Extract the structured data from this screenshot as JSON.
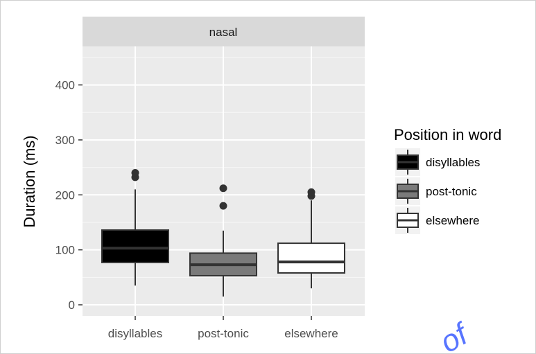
{
  "chart_data": {
    "type": "boxplot",
    "facet_label": "nasal",
    "xlabel": "",
    "ylabel": "Duration (ms)",
    "ylim": [
      -20,
      500
    ],
    "y_ticks": [
      0,
      100,
      200,
      300,
      400
    ],
    "categories": [
      "disyllables",
      "post-tonic",
      "elsewhere"
    ],
    "boxes": [
      {
        "category": "disyllables",
        "fill": "#000000",
        "min": 35,
        "q1": 77,
        "median": 103,
        "q3": 136,
        "max": 210,
        "outliers": [
          232,
          240
        ]
      },
      {
        "category": "post-tonic",
        "fill": "#7a7a7a",
        "min": 15,
        "q1": 53,
        "median": 73,
        "q3": 94,
        "max": 135,
        "outliers": [
          180,
          212
        ]
      },
      {
        "category": "elsewhere",
        "fill": "#ffffff",
        "min": 30,
        "q1": 58,
        "median": 78,
        "q3": 112,
        "max": 190,
        "outliers": [
          198,
          205
        ]
      }
    ],
    "legend": {
      "title": "Position in word",
      "items": [
        "disyllables",
        "post-tonic",
        "elsewhere"
      ]
    },
    "grid": true,
    "colors": {
      "panel_bg": "#ebebeb",
      "strip_bg": "#d9d9d9",
      "grid_major": "#ffffff",
      "box_outline": "#333333",
      "median_line": "#333333"
    }
  },
  "watermark": "of"
}
